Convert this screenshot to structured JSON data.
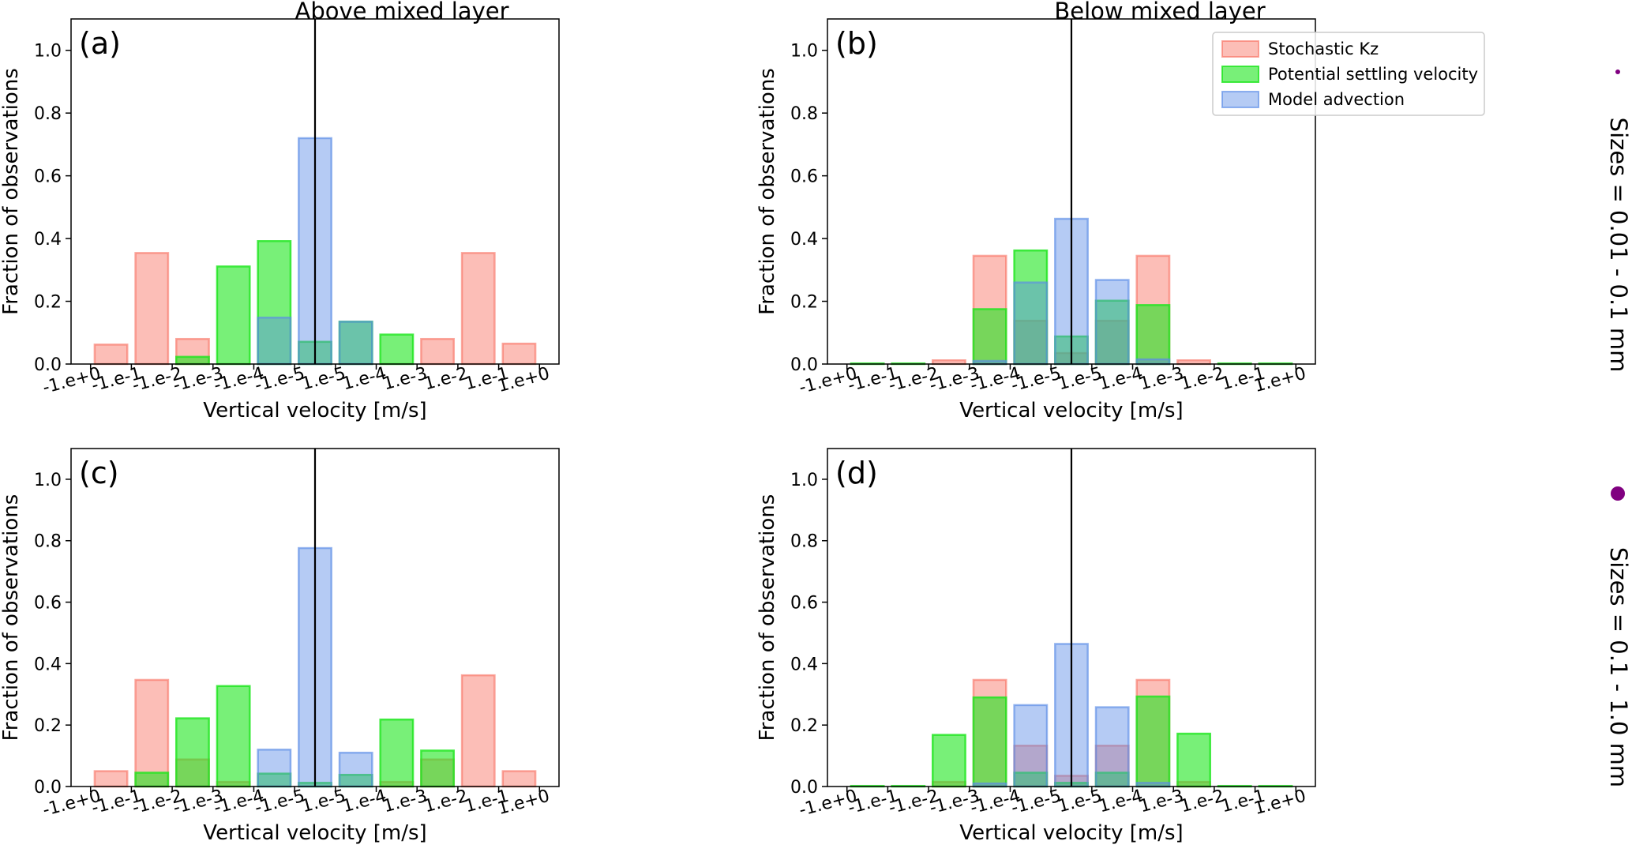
{
  "figure": {
    "column_titles": [
      "Above mixed layer",
      "Below mixed layer"
    ],
    "row_labels": [
      "Sizes = 0.01 - 0.1 mm",
      "Sizes = 0.1 - 1.0 mm"
    ],
    "marker_color": "#800080"
  },
  "legend": {
    "entries": [
      {
        "name": "Stochastic Kz",
        "color": "#f8a89e"
      },
      {
        "name": "Potential settling velocity",
        "color": "#66f066"
      },
      {
        "name": "Model advection",
        "color": "#9fbbf0"
      }
    ]
  },
  "colors": {
    "stochastic_fill": "rgba(248,110,95,0.45)",
    "stochastic_edge": "rgba(248,110,95,0.6)",
    "settling_fill": "rgba(30,230,30,0.6)",
    "settling_edge": "rgba(30,230,30,0.8)",
    "advection_fill": "rgba(90,140,230,0.45)",
    "advection_edge": "rgba(90,140,230,0.65)"
  },
  "chart_data": [
    {
      "type": "bar",
      "panel": "(a)",
      "title": "Above mixed layer",
      "xlabel": "Vertical velocity [m/s]",
      "ylabel": "Fraction of observations",
      "ylim": [
        0,
        1.1
      ],
      "yticks": [
        "0.0",
        "0.2",
        "0.4",
        "0.6",
        "0.8",
        "1.0"
      ],
      "bin_edges": [
        "-1.e+0",
        "-1.e-1",
        "-1.e-2",
        "-1.e-3",
        "-1.e-4",
        "-1.e-5",
        "1.e-5",
        "1.e-4",
        "1.e-3",
        "1.e-2",
        "1.e-1",
        "1.e+0"
      ],
      "zero_line_position": 5.5,
      "series": [
        {
          "name": "Stochastic Kz",
          "values": [
            0.062,
            0.354,
            0.08,
            0.0,
            0.0,
            0.0,
            0.0,
            0.0,
            0.08,
            0.354,
            0.065
          ]
        },
        {
          "name": "Potential settling velocity",
          "values": [
            0.0,
            0.0,
            0.023,
            0.311,
            0.392,
            0.071,
            0.135,
            0.094,
            0.0,
            0.0,
            0.0
          ]
        },
        {
          "name": "Model advection",
          "values": [
            0.0,
            0.0,
            0.0,
            0.0,
            0.148,
            0.72,
            0.135,
            0.0,
            0.0,
            0.0,
            0.0
          ]
        }
      ],
      "legend": false
    },
    {
      "type": "bar",
      "panel": "(b)",
      "title": "Below mixed layer",
      "xlabel": "Vertical velocity [m/s]",
      "ylabel": "Fraction of observations",
      "ylim": [
        0,
        1.1
      ],
      "yticks": [
        "0.0",
        "0.2",
        "0.4",
        "0.6",
        "0.8",
        "1.0"
      ],
      "bin_edges": [
        "-1.e+0",
        "-1.e-1",
        "-1.e-2",
        "-1.e-3",
        "-1.e-4",
        "-1.e-5",
        "1.e-5",
        "1.e-4",
        "1.e-3",
        "1.e-2",
        "1.e-1",
        "1.e+0"
      ],
      "zero_line_position": 5.5,
      "series": [
        {
          "name": "Stochastic Kz",
          "values": [
            0.0,
            0.0,
            0.012,
            0.345,
            0.138,
            0.035,
            0.138,
            0.345,
            0.012,
            0.0,
            0.0
          ]
        },
        {
          "name": "Potential settling velocity",
          "values": [
            0.002,
            0.002,
            0.0,
            0.175,
            0.362,
            0.088,
            0.202,
            0.188,
            0.0,
            0.002,
            0.002
          ]
        },
        {
          "name": "Model advection",
          "values": [
            0.0,
            0.0,
            0.0,
            0.01,
            0.26,
            0.463,
            0.268,
            0.015,
            0.0,
            0.0,
            0.0
          ]
        }
      ],
      "legend": true,
      "legend_position": "top-right"
    },
    {
      "type": "bar",
      "panel": "(c)",
      "title": "",
      "xlabel": "Vertical velocity [m/s]",
      "ylabel": "Fraction of observations",
      "ylim": [
        0,
        1.1
      ],
      "yticks": [
        "0.0",
        "0.2",
        "0.4",
        "0.6",
        "0.8",
        "1.0"
      ],
      "bin_edges": [
        "-1.e+0",
        "-1.e-1",
        "-1.e-2",
        "-1.e-3",
        "-1.e-4",
        "-1.e-5",
        "1.e-5",
        "1.e-4",
        "1.e-3",
        "1.e-2",
        "1.e-1",
        "1.e+0"
      ],
      "zero_line_position": 5.5,
      "series": [
        {
          "name": "Stochastic Kz",
          "values": [
            0.05,
            0.347,
            0.088,
            0.015,
            0.0,
            0.0,
            0.0,
            0.015,
            0.088,
            0.362,
            0.05
          ]
        },
        {
          "name": "Potential settling velocity",
          "values": [
            0.0,
            0.045,
            0.222,
            0.327,
            0.042,
            0.012,
            0.038,
            0.218,
            0.117,
            0.0,
            0.0
          ]
        },
        {
          "name": "Model advection",
          "values": [
            0.0,
            0.0,
            0.0,
            0.0,
            0.12,
            0.776,
            0.11,
            0.0,
            0.0,
            0.0,
            0.0
          ]
        }
      ],
      "legend": false
    },
    {
      "type": "bar",
      "panel": "(d)",
      "title": "",
      "xlabel": "Vertical velocity [m/s]",
      "ylabel": "Fraction of observations",
      "ylim": [
        0,
        1.1
      ],
      "yticks": [
        "0.0",
        "0.2",
        "0.4",
        "0.6",
        "0.8",
        "1.0"
      ],
      "bin_edges": [
        "-1.e+0",
        "-1.e-1",
        "-1.e-2",
        "-1.e-3",
        "-1.e-4",
        "-1.e-5",
        "1.e-5",
        "1.e-4",
        "1.e-3",
        "1.e-2",
        "1.e-1",
        "1.e+0"
      ],
      "zero_line_position": 5.5,
      "series": [
        {
          "name": "Stochastic Kz",
          "values": [
            0.0,
            0.0,
            0.015,
            0.347,
            0.133,
            0.035,
            0.133,
            0.347,
            0.015,
            0.0,
            0.0
          ]
        },
        {
          "name": "Potential settling velocity",
          "values": [
            0.002,
            0.002,
            0.168,
            0.29,
            0.045,
            0.012,
            0.045,
            0.293,
            0.172,
            0.002,
            0.002
          ]
        },
        {
          "name": "Model advection",
          "values": [
            0.0,
            0.0,
            0.0,
            0.01,
            0.265,
            0.464,
            0.258,
            0.012,
            0.0,
            0.0,
            0.0
          ]
        }
      ],
      "legend": false
    }
  ]
}
